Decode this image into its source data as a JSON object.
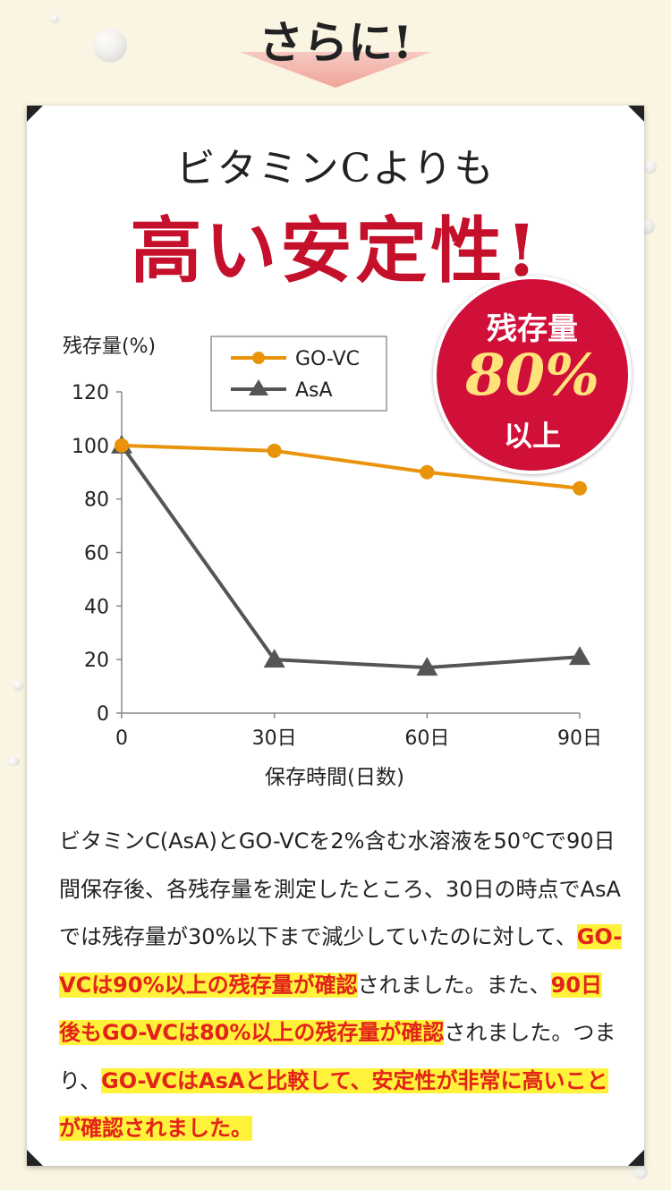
{
  "header": {
    "text": "さらに!"
  },
  "title": {
    "subtitle": "ビタミンCよりも",
    "headline": "高い安定性!"
  },
  "badge": {
    "top": "残存量",
    "value": "80%",
    "bottom": "以上"
  },
  "colors": {
    "go_vc": "#e8930a",
    "asa": "#555555",
    "accent": "#c4102a",
    "badge": "#d1103a",
    "highlight": "#fff23a"
  },
  "chart_data": {
    "type": "line",
    "ylabel": "残存量(%)",
    "xlabel": "保存時間(日数)",
    "x": [
      0,
      30,
      60,
      90
    ],
    "x_tick_labels": [
      "0",
      "30日",
      "60日",
      "90日"
    ],
    "ylim": [
      0,
      120
    ],
    "y_ticks": [
      0,
      20,
      40,
      60,
      80,
      100,
      120
    ],
    "grid": false,
    "legend_position": "top-left",
    "series": [
      {
        "name": "GO-VC",
        "marker": "circle",
        "values": [
          100,
          98,
          90,
          84
        ]
      },
      {
        "name": "AsA",
        "marker": "triangle",
        "values": [
          100,
          20,
          17,
          21
        ]
      }
    ]
  },
  "description": {
    "segments": [
      {
        "text": "ビタミンC(AsA)とGO-VCを2%含む水溶液を50℃で90日間保存後、各残存量を測定したところ、30日の時点でAsAでは残存量が30%以下まで減少していたのに対して、",
        "highlight": false
      },
      {
        "text": "GO-VCは90%以上の残存量が確認",
        "highlight": true
      },
      {
        "text": "されました。また、",
        "highlight": false
      },
      {
        "text": "90日後もGO-VCは80%以上の残存量が確認",
        "highlight": true
      },
      {
        "text": "されました。つまり、",
        "highlight": false
      },
      {
        "text": "GO-VCはAsAと比較して、安定性が非常に高いことが確認されました。",
        "highlight": true
      }
    ]
  }
}
